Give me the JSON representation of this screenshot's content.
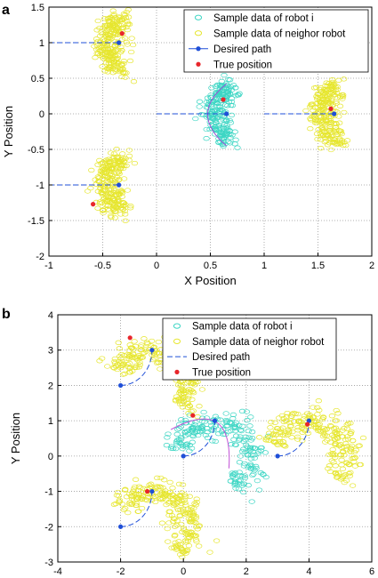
{
  "chart_data": [
    {
      "type": "scatter",
      "panel_label": "a",
      "xlabel": "X Position",
      "ylabel": "Y Position",
      "xlim": [
        -1,
        2
      ],
      "ylim": [
        -2,
        1.5
      ],
      "xticks": [
        -1,
        -0.5,
        0,
        0.5,
        1,
        1.5,
        2
      ],
      "xtick_labels": [
        "-1",
        "-0.5",
        "0",
        "0.5",
        "1",
        "1.5",
        "2"
      ],
      "yticks": [
        -2,
        -1.5,
        -1,
        -0.5,
        0,
        0.5,
        1,
        1.5
      ],
      "ytick_labels": [
        "-2",
        "-1.5",
        "-1",
        "-0.5",
        "0",
        "0.5",
        "1",
        "1.5"
      ],
      "grid": true,
      "legend_position": "top-right",
      "legend": [
        {
          "label": "Sample data of robot i",
          "marker": "circle-open",
          "color": "#3dd6c4"
        },
        {
          "label": "Sample data of neighor robot",
          "marker": "circle-open",
          "color": "#e6e62e"
        },
        {
          "label": "Desired path",
          "marker": "line-dot",
          "color": "#1f4fd8"
        },
        {
          "label": "True position",
          "marker": "dot",
          "color": "#e8262b"
        }
      ],
      "desired_paths": [
        {
          "points": [
            [
              -1,
              1
            ],
            [
              -0.35,
              1
            ]
          ]
        },
        {
          "points": [
            [
              0,
              0
            ],
            [
              0.65,
              0
            ]
          ]
        },
        {
          "points": [
            [
              1,
              0
            ],
            [
              1.65,
              0
            ]
          ]
        },
        {
          "points": [
            [
              -1,
              -1
            ],
            [
              -0.35,
              -1
            ]
          ]
        }
      ],
      "desired_positions": [
        [
          -0.35,
          1
        ],
        [
          0.65,
          0
        ],
        [
          1.65,
          0
        ],
        [
          -0.35,
          -1
        ]
      ],
      "true_positions": [
        [
          -0.32,
          1.13
        ],
        [
          0.62,
          0.2
        ],
        [
          1.62,
          0.07
        ],
        [
          -0.59,
          -1.27
        ]
      ],
      "sample_clusters": [
        {
          "group": "neighbor",
          "center": [
            -0.35,
            1
          ],
          "spread": [
            0.1,
            0.25
          ]
        },
        {
          "group": "robot_i",
          "center": [
            0.65,
            0
          ],
          "spread": [
            0.1,
            0.25
          ]
        },
        {
          "group": "neighbor",
          "center": [
            1.65,
            0
          ],
          "spread": [
            0.1,
            0.25
          ]
        },
        {
          "group": "neighbor",
          "center": [
            -0.35,
            -1
          ],
          "spread": [
            0.1,
            0.25
          ]
        }
      ]
    },
    {
      "type": "scatter",
      "panel_label": "b",
      "xlabel": "",
      "ylabel": "Y Position",
      "xlim": [
        -4,
        6
      ],
      "ylim": [
        -3,
        4
      ],
      "xticks": [
        -4,
        -2,
        0,
        2,
        4,
        6
      ],
      "xtick_labels": [
        "-4",
        "-2",
        "0",
        "2",
        "4",
        "6"
      ],
      "yticks": [
        -3,
        -2,
        -1,
        0,
        1,
        2,
        3,
        4
      ],
      "ytick_labels": [
        "-3",
        "-2",
        "-1",
        "0",
        "1",
        "2",
        "3",
        "4"
      ],
      "grid": true,
      "legend_position": "top-right",
      "legend": [
        {
          "label": "Sample data of robot i",
          "marker": "circle-open",
          "color": "#3dd6c4"
        },
        {
          "label": "Sample data of neighor robot",
          "marker": "circle-open",
          "color": "#e6e62e"
        },
        {
          "label": "Desired path",
          "marker": "dashed-line",
          "color": "#1f4fd8"
        },
        {
          "label": "True position",
          "marker": "dot",
          "color": "#e8262b"
        }
      ],
      "desired_paths": [
        {
          "arc_center": [
            -1,
            2
          ],
          "radius": 1,
          "start": [
            -2,
            2
          ],
          "end": [
            -1,
            3
          ]
        },
        {
          "arc_center": [
            1,
            0
          ],
          "radius": 1,
          "start": [
            0,
            0
          ],
          "end": [
            1,
            1
          ]
        },
        {
          "arc_center": [
            4,
            0
          ],
          "radius": 1,
          "start": [
            3,
            0
          ],
          "end": [
            4,
            1
          ]
        },
        {
          "arc_center": [
            -1,
            -2
          ],
          "radius": 1,
          "start": [
            -2,
            -2
          ],
          "end": [
            -1,
            -1
          ]
        }
      ],
      "start_points": [
        [
          -2,
          2
        ],
        [
          0,
          0
        ],
        [
          3,
          0
        ],
        [
          -2,
          -2
        ]
      ],
      "desired_positions": [
        [
          -1,
          3
        ],
        [
          1,
          1
        ],
        [
          4,
          1
        ],
        [
          -1,
          -1
        ]
      ],
      "true_positions": [
        [
          -1.7,
          3.35
        ],
        [
          0.3,
          1.15
        ],
        [
          3.95,
          0.9
        ],
        [
          -1.15,
          -1
        ]
      ],
      "sample_clusters": [
        {
          "group": "neighbor",
          "arc_center": [
            -1,
            2
          ],
          "radius": 1.05,
          "angle_range_deg": [
            -40,
            160
          ]
        },
        {
          "group": "robot_i",
          "arc_center": [
            1,
            0
          ],
          "radius": 1.05,
          "angle_range_deg": [
            -60,
            170
          ]
        },
        {
          "group": "neighbor",
          "arc_center": [
            4,
            0
          ],
          "radius": 1.05,
          "angle_range_deg": [
            -40,
            160
          ]
        },
        {
          "group": "neighbor",
          "arc_center": [
            -1,
            -2
          ],
          "radius": 1.05,
          "angle_range_deg": [
            -50,
            150
          ]
        }
      ]
    }
  ]
}
